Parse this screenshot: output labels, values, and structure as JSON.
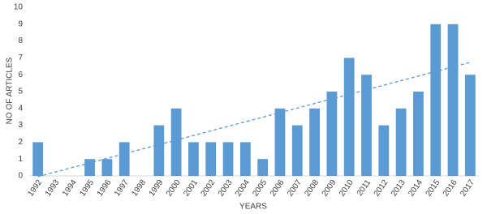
{
  "chart_data": {
    "type": "bar",
    "x_label": "YEARS",
    "y_label": "NO OF ARTICLES",
    "categories": [
      "1992",
      "1993",
      "1994",
      "1995",
      "1996",
      "1997",
      "1998",
      "1999",
      "2000",
      "2001",
      "2002",
      "2003",
      "2004",
      "2005",
      "2006",
      "2007",
      "2008",
      "2009",
      "2010",
      "2011",
      "2012",
      "2013",
      "2014",
      "2015",
      "2016",
      "2017"
    ],
    "values": [
      2,
      0,
      0,
      1,
      1,
      2,
      0,
      3,
      4,
      2,
      2,
      2,
      2,
      1,
      4,
      3,
      4,
      5,
      7,
      6,
      3,
      4,
      5,
      9,
      9,
      6
    ],
    "color": "#5b9bd5",
    "ylim": [
      0,
      10
    ],
    "yticks": [
      0,
      1,
      2,
      3,
      4,
      5,
      6,
      7,
      8,
      9,
      10
    ],
    "grid": false,
    "trendline": "linear"
  }
}
